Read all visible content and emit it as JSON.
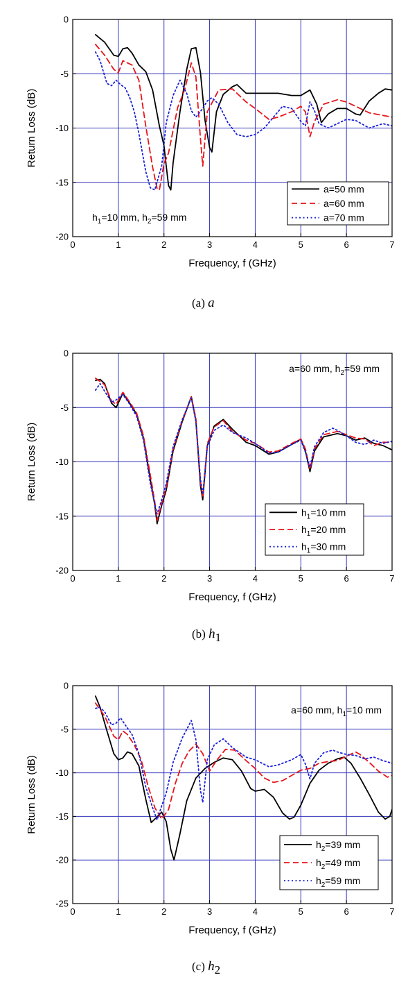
{
  "colors": {
    "grid": "#3333bb",
    "black": "#000000",
    "red": "#e8141a",
    "blue": "#1c22d8"
  },
  "chart_data": [
    {
      "type": "line",
      "caption": {
        "label": "(a)",
        "var": "a",
        "sub": ""
      },
      "xlabel": "Frequency,   f      (GHz)",
      "ylabel": "Return Loss     (dB)",
      "xlim": [
        0,
        7
      ],
      "ylim": [
        -20,
        0
      ],
      "xticks": [
        0,
        1,
        2,
        3,
        4,
        5,
        6,
        7
      ],
      "yticks": [
        0,
        -5,
        -10,
        -15,
        -20
      ],
      "grid": true,
      "legend_position": "bottom-right",
      "annotation": {
        "parts": [
          [
            "h",
            "1",
            "=10 mm, "
          ],
          [
            "h",
            "2",
            "=59 mm"
          ]
        ],
        "position": "bottom-left"
      },
      "series": [
        {
          "name_main": "a",
          "name_sub": "",
          "name_rest": "=50 mm",
          "style": "solid",
          "color": "black",
          "x": [
            0.5,
            0.7,
            0.9,
            1.0,
            1.1,
            1.2,
            1.3,
            1.45,
            1.6,
            1.75,
            1.9,
            2.0,
            2.05,
            2.1,
            2.15,
            2.2,
            2.35,
            2.5,
            2.6,
            2.7,
            2.8,
            2.9,
            3.0,
            3.05,
            3.15,
            3.3,
            3.5,
            3.6,
            3.8,
            4.0,
            4.5,
            4.8,
            5.0,
            5.2,
            5.35,
            5.45,
            5.6,
            5.8,
            6.0,
            6.2,
            6.3,
            6.5,
            6.7,
            6.85,
            7.0
          ],
          "y": [
            -1.4,
            -2.1,
            -3.3,
            -3.4,
            -2.7,
            -2.6,
            -3.1,
            -4.2,
            -4.8,
            -6.5,
            -9.8,
            -11.6,
            -13.5,
            -15.3,
            -15.7,
            -13.2,
            -8.5,
            -4.6,
            -2.7,
            -2.6,
            -4.9,
            -9.3,
            -11.8,
            -12.2,
            -8.5,
            -6.9,
            -6.2,
            -6.0,
            -6.8,
            -6.8,
            -6.8,
            -7.0,
            -7.0,
            -6.5,
            -7.8,
            -9.5,
            -8.7,
            -8.2,
            -8.2,
            -8.7,
            -8.8,
            -7.5,
            -6.8,
            -6.4,
            -6.5
          ]
        },
        {
          "name_main": "a",
          "name_sub": "",
          "name_rest": "=60 mm",
          "style": "dashed",
          "color": "red",
          "x": [
            0.5,
            0.7,
            0.9,
            1.0,
            1.1,
            1.3,
            1.45,
            1.6,
            1.75,
            1.85,
            1.9,
            2.0,
            2.1,
            2.3,
            2.45,
            2.6,
            2.7,
            2.8,
            2.85,
            2.95,
            3.2,
            3.5,
            3.8,
            4.0,
            4.3,
            4.5,
            4.8,
            5.0,
            5.1,
            5.2,
            5.3,
            5.5,
            5.8,
            6.0,
            6.5,
            7.0
          ],
          "y": [
            -2.3,
            -3.3,
            -4.6,
            -4.9,
            -3.8,
            -4.2,
            -5.6,
            -9.8,
            -13.6,
            -15.6,
            -15.7,
            -13.3,
            -12.3,
            -8.1,
            -6.5,
            -4.0,
            -5.3,
            -11.0,
            -13.5,
            -8.5,
            -6.5,
            -6.4,
            -7.6,
            -8.2,
            -9.2,
            -9.0,
            -8.5,
            -8.0,
            -8.5,
            -10.8,
            -9.4,
            -7.8,
            -7.4,
            -7.6,
            -8.6,
            -9.0
          ]
        },
        {
          "name_main": "a",
          "name_sub": "",
          "name_rest": "=70 mm",
          "style": "dotted",
          "color": "blue",
          "x": [
            0.5,
            0.6,
            0.75,
            0.85,
            0.95,
            1.05,
            1.15,
            1.25,
            1.35,
            1.45,
            1.6,
            1.7,
            1.8,
            1.95,
            2.05,
            2.2,
            2.35,
            2.5,
            2.6,
            2.7,
            2.85,
            2.95,
            3.05,
            3.2,
            3.4,
            3.6,
            3.8,
            4.0,
            4.2,
            4.4,
            4.6,
            4.8,
            5.0,
            5.1,
            5.2,
            5.3,
            5.4,
            5.6,
            5.8,
            6.0,
            6.2,
            6.5,
            6.8,
            7.0
          ],
          "y": [
            -3.0,
            -3.8,
            -5.9,
            -6.1,
            -5.6,
            -6.0,
            -6.3,
            -7.2,
            -8.5,
            -10.5,
            -14.0,
            -15.5,
            -15.7,
            -13.5,
            -9.5,
            -7.0,
            -5.6,
            -6.8,
            -8.4,
            -9.0,
            -8.2,
            -7.5,
            -7.2,
            -7.8,
            -9.5,
            -10.6,
            -10.8,
            -10.6,
            -10.0,
            -9.0,
            -8.0,
            -8.2,
            -9.4,
            -9.8,
            -7.6,
            -8.4,
            -9.6,
            -10.0,
            -9.6,
            -9.2,
            -9.3,
            -10.0,
            -9.6,
            -9.8
          ]
        }
      ]
    },
    {
      "type": "line",
      "caption": {
        "label": "(b)",
        "var": "h",
        "sub": "1"
      },
      "xlabel": "Frequency,   f      (GHz)",
      "ylabel": "Return Loss     (dB)",
      "xlim": [
        0,
        7
      ],
      "ylim": [
        -20,
        0
      ],
      "xticks": [
        0,
        1,
        2,
        3,
        4,
        5,
        6,
        7
      ],
      "yticks": [
        0,
        -5,
        -10,
        -15,
        -20
      ],
      "grid": true,
      "legend_position": "bottom-right",
      "annotation": {
        "parts": [
          [
            "a",
            "",
            "=60 mm, "
          ],
          [
            "h",
            "2",
            "=59 mm"
          ]
        ],
        "position": "top-right"
      },
      "series": [
        {
          "name_main": "h",
          "name_sub": "1",
          "name_rest": "=10 mm",
          "style": "solid",
          "color": "black",
          "x": [
            0.5,
            0.6,
            0.7,
            0.85,
            0.95,
            1.1,
            1.25,
            1.4,
            1.55,
            1.7,
            1.8,
            1.85,
            1.95,
            2.05,
            2.2,
            2.4,
            2.6,
            2.7,
            2.8,
            2.85,
            2.95,
            3.1,
            3.3,
            3.5,
            3.8,
            4.0,
            4.3,
            4.5,
            4.8,
            5.0,
            5.1,
            5.2,
            5.3,
            5.5,
            5.8,
            6.0,
            6.2,
            6.4,
            6.6,
            6.8,
            7.0
          ],
          "y": [
            -2.5,
            -2.4,
            -2.8,
            -4.6,
            -5.0,
            -3.7,
            -4.6,
            -5.6,
            -7.8,
            -11.6,
            -14.0,
            -15.7,
            -14.0,
            -12.6,
            -9.0,
            -6.3,
            -4.0,
            -6.2,
            -12.2,
            -13.5,
            -8.5,
            -6.7,
            -6.1,
            -7.0,
            -8.2,
            -8.5,
            -9.3,
            -9.1,
            -8.4,
            -7.9,
            -9.0,
            -10.9,
            -9.0,
            -7.7,
            -7.4,
            -7.6,
            -8.0,
            -7.8,
            -8.3,
            -8.5,
            -8.9
          ]
        },
        {
          "name_main": "h",
          "name_sub": "1",
          "name_rest": "=20 mm",
          "style": "dashed",
          "color": "red",
          "x": [
            0.5,
            0.6,
            0.7,
            0.85,
            0.95,
            1.1,
            1.25,
            1.4,
            1.55,
            1.7,
            1.8,
            1.85,
            1.95,
            2.05,
            2.2,
            2.4,
            2.6,
            2.7,
            2.8,
            2.85,
            2.95,
            3.1,
            3.3,
            3.5,
            3.8,
            4.0,
            4.3,
            4.5,
            4.8,
            5.0,
            5.1,
            5.2,
            5.3,
            5.5,
            5.8,
            6.0,
            6.2,
            6.4,
            6.6,
            6.8,
            7.0
          ],
          "y": [
            -2.3,
            -2.6,
            -2.9,
            -4.4,
            -4.7,
            -3.6,
            -4.5,
            -5.5,
            -7.6,
            -11.2,
            -13.7,
            -15.4,
            -13.8,
            -12.3,
            -8.8,
            -6.2,
            -4.0,
            -6.0,
            -11.8,
            -13.3,
            -8.3,
            -6.8,
            -6.2,
            -7.2,
            -8.0,
            -8.3,
            -9.1,
            -9.0,
            -8.3,
            -7.9,
            -8.8,
            -10.7,
            -8.8,
            -7.5,
            -7.2,
            -7.5,
            -7.8,
            -7.9,
            -8.5,
            -8.2,
            -8.2
          ]
        },
        {
          "name_main": "h",
          "name_sub": "1",
          "name_rest": "=30 mm",
          "style": "dotted",
          "color": "blue",
          "x": [
            0.5,
            0.6,
            0.7,
            0.85,
            0.95,
            1.1,
            1.25,
            1.4,
            1.55,
            1.7,
            1.8,
            1.85,
            1.95,
            2.05,
            2.2,
            2.4,
            2.6,
            2.7,
            2.8,
            2.85,
            2.95,
            3.1,
            3.3,
            3.5,
            3.8,
            4.0,
            4.3,
            4.5,
            4.8,
            5.0,
            5.1,
            5.2,
            5.3,
            5.5,
            5.7,
            5.8,
            6.0,
            6.2,
            6.4,
            6.6,
            6.8,
            7.0
          ],
          "y": [
            -3.4,
            -2.8,
            -3.5,
            -4.5,
            -4.3,
            -3.8,
            -4.7,
            -5.8,
            -8.0,
            -12.0,
            -13.9,
            -14.8,
            -13.5,
            -12.0,
            -8.6,
            -6.1,
            -4.1,
            -6.3,
            -11.6,
            -13.0,
            -8.6,
            -7.1,
            -6.6,
            -7.3,
            -7.8,
            -8.3,
            -9.2,
            -9.1,
            -8.4,
            -8.0,
            -9.1,
            -10.5,
            -8.6,
            -7.3,
            -6.9,
            -7.1,
            -7.6,
            -8.2,
            -8.4,
            -8.0,
            -8.3,
            -8.1
          ]
        }
      ]
    },
    {
      "type": "line",
      "caption": {
        "label": "(c)",
        "var": "h",
        "sub": "2"
      },
      "xlabel": "Frequency,   f      (GHz)",
      "ylabel": "Return Loss     (dB)",
      "xlim": [
        0,
        7
      ],
      "ylim": [
        -25,
        0
      ],
      "xticks": [
        0,
        1,
        2,
        3,
        4,
        5,
        6,
        7
      ],
      "yticks": [
        0,
        -5,
        -10,
        -15,
        -20,
        -25
      ],
      "grid": true,
      "legend_position": "bottom-right",
      "annotation": {
        "parts": [
          [
            "a",
            "",
            "=60 mm, "
          ],
          [
            "h",
            "1",
            "=10 mm"
          ]
        ],
        "position": "top-right"
      },
      "series": [
        {
          "name_main": "h",
          "name_sub": "2",
          "name_rest": "=39 mm",
          "style": "solid",
          "color": "black",
          "x": [
            0.5,
            0.6,
            0.75,
            0.9,
            1.0,
            1.1,
            1.2,
            1.3,
            1.45,
            1.6,
            1.72,
            1.82,
            1.95,
            2.05,
            2.15,
            2.22,
            2.35,
            2.5,
            2.7,
            2.9,
            3.1,
            3.3,
            3.5,
            3.7,
            3.9,
            4.0,
            4.2,
            4.4,
            4.6,
            4.75,
            4.85,
            5.0,
            5.2,
            5.4,
            5.6,
            5.8,
            5.95,
            6.1,
            6.3,
            6.5,
            6.7,
            6.85,
            6.95,
            7.0
          ],
          "y": [
            -1.2,
            -2.5,
            -5.2,
            -7.8,
            -8.5,
            -8.3,
            -7.6,
            -7.8,
            -9.2,
            -13.0,
            -15.7,
            -15.2,
            -14.5,
            -15.6,
            -18.8,
            -20.0,
            -17.0,
            -13.2,
            -10.6,
            -9.5,
            -8.8,
            -8.3,
            -8.5,
            -9.8,
            -11.8,
            -12.1,
            -11.9,
            -12.8,
            -14.6,
            -15.3,
            -15.1,
            -13.7,
            -11.2,
            -9.7,
            -8.9,
            -8.4,
            -8.2,
            -8.9,
            -10.6,
            -12.5,
            -14.5,
            -15.3,
            -15.0,
            -14.2
          ]
        },
        {
          "name_main": "h",
          "name_sub": "2",
          "name_rest": "=49 mm",
          "style": "dashed",
          "color": "red",
          "x": [
            0.5,
            0.7,
            0.9,
            1.0,
            1.1,
            1.2,
            1.35,
            1.5,
            1.65,
            1.8,
            1.95,
            2.1,
            2.25,
            2.4,
            2.55,
            2.7,
            2.85,
            3.0,
            3.15,
            3.35,
            3.55,
            3.8,
            4.0,
            4.2,
            4.4,
            4.6,
            4.8,
            5.0,
            5.2,
            5.4,
            5.6,
            5.8,
            6.0,
            6.2,
            6.3,
            6.5,
            6.7,
            6.9,
            7.0
          ],
          "y": [
            -2.0,
            -3.5,
            -5.8,
            -6.2,
            -5.2,
            -5.6,
            -6.8,
            -8.5,
            -11.5,
            -14.0,
            -15.3,
            -14.2,
            -11.2,
            -8.9,
            -7.5,
            -6.7,
            -7.8,
            -9.8,
            -8.6,
            -7.3,
            -7.4,
            -8.6,
            -9.5,
            -10.6,
            -11.1,
            -10.9,
            -10.3,
            -9.7,
            -9.5,
            -8.9,
            -8.7,
            -8.6,
            -8.1,
            -7.6,
            -7.9,
            -8.8,
            -9.8,
            -10.5,
            -10.3
          ]
        },
        {
          "name_main": "h",
          "name_sub": "2",
          "name_rest": "=59 mm",
          "style": "dotted",
          "color": "blue",
          "x": [
            0.5,
            0.6,
            0.7,
            0.85,
            0.95,
            1.05,
            1.15,
            1.3,
            1.45,
            1.6,
            1.75,
            1.85,
            1.95,
            2.05,
            2.2,
            2.4,
            2.6,
            2.7,
            2.8,
            2.85,
            2.95,
            3.1,
            3.3,
            3.5,
            3.8,
            4.0,
            4.3,
            4.5,
            4.8,
            5.0,
            5.1,
            5.2,
            5.3,
            5.5,
            5.7,
            5.8,
            6.0,
            6.2,
            6.4,
            6.6,
            6.8,
            7.0
          ],
          "y": [
            -2.6,
            -2.5,
            -3.0,
            -4.5,
            -4.3,
            -3.7,
            -4.5,
            -5.6,
            -7.8,
            -11.6,
            -14.0,
            -15.4,
            -13.8,
            -12.3,
            -8.8,
            -6.0,
            -4.0,
            -6.2,
            -12.0,
            -13.4,
            -8.5,
            -6.8,
            -6.1,
            -7.1,
            -8.2,
            -8.5,
            -9.3,
            -9.1,
            -8.5,
            -7.9,
            -9.0,
            -10.7,
            -8.9,
            -7.7,
            -7.4,
            -7.6,
            -7.9,
            -8.0,
            -8.4,
            -8.2,
            -8.6,
            -8.9
          ]
        }
      ]
    }
  ]
}
